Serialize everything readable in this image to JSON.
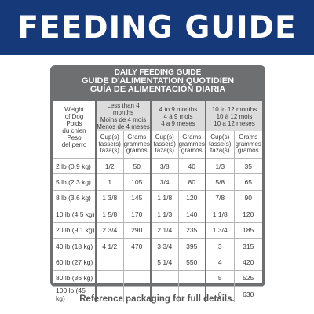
{
  "banner": {
    "title": "FEEDING GUIDE",
    "bg": "#16397a"
  },
  "guide": {
    "title_en": "DAILY FEEDING GUIDE",
    "title_fr": "GUIDE D'ALIMENTATION QUOTIDIEN",
    "title_es": "GUÍA DE ALIMENTACIÓN DIARIA",
    "weight_header": [
      "Weight",
      "of Dog",
      "Poids",
      "du chien",
      "Peso",
      "del perro"
    ],
    "age_groups": [
      [
        "Less than 4 months",
        "Moins de 4 mois",
        "Menos de 4 meses"
      ],
      [
        "4 to 9 months",
        "4 à 9 mois",
        "4 a 9 meses"
      ],
      [
        "10 to 12 months",
        "10 à 12 mois",
        "10 a 12 meses"
      ]
    ],
    "cup_header": [
      "Cup(s)",
      "tasse(s)",
      "taza(s)"
    ],
    "gram_header": [
      "Grams",
      "grammes",
      "gramos"
    ],
    "rows": [
      {
        "weight": "2 lb (0.9 kg)",
        "c1": "1/2",
        "g1": "50",
        "c2": "3/8",
        "g2": "40",
        "c3": "1/3",
        "g3": "35"
      },
      {
        "weight": "5 lb (2.3 kg)",
        "c1": "1",
        "g1": "105",
        "c2": "3/4",
        "g2": "80",
        "c3": "5/8",
        "g3": "65"
      },
      {
        "weight": "8 lb (3.6 kg)",
        "c1": "1 3/8",
        "g1": "145",
        "c2": "1 1/8",
        "g2": "120",
        "c3": "7/8",
        "g3": "90"
      },
      {
        "weight": "10 lb (4.5 kg)",
        "c1": "1 5/8",
        "g1": "170",
        "c2": "1 1/3",
        "g2": "140",
        "c3": "1 1/8",
        "g3": "120"
      },
      {
        "weight": "20 lb (9.1 kg)",
        "c1": "2 3/4",
        "g1": "290",
        "c2": "2 1/4",
        "g2": "235",
        "c3": "1 3/4",
        "g3": "185"
      },
      {
        "weight": "40 lb (18 kg)",
        "c1": "4 1/2",
        "g1": "470",
        "c2": "3 3/4",
        "g2": "395",
        "c3": "3",
        "g3": "315"
      },
      {
        "weight": "60 lb (27 kg)",
        "c1": "",
        "g1": "",
        "c2": "5 1/4",
        "g2": "550",
        "c3": "4",
        "g3": "420"
      },
      {
        "weight": "80 lb (36 kg)",
        "c1": "",
        "g1": "",
        "c2": "",
        "g2": "",
        "c3": "5",
        "g3": "525"
      },
      {
        "weight": "100 lb (45 kg)",
        "c1": "",
        "g1": "",
        "c2": "",
        "g2": "",
        "c3": "6",
        "g3": "630"
      }
    ]
  },
  "footer": {
    "text": "Reference packaging for full details."
  }
}
